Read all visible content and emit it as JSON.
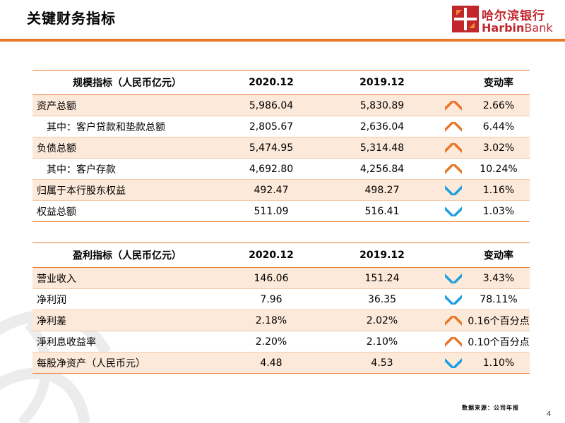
{
  "header": {
    "title": "关键财务指标",
    "logo_cn": "哈尔滨银行",
    "logo_en_bold": "Harbin",
    "logo_en_regular": "Bank"
  },
  "colors": {
    "accent": "#e9772a",
    "row_shade": "#fde9d9",
    "arrow_up": "#e9772a",
    "arrow_down": "#1aa0e0",
    "logo_red": "#c1272d"
  },
  "scale_table": {
    "headers": [
      "规模指标（人民币亿元）",
      "2020.12",
      "2019.12",
      "",
      "变动率"
    ],
    "rows": [
      {
        "name": "资产总额",
        "v2020": "5,986.04",
        "v2019": "5,830.89",
        "trend": "up",
        "rate": "2.66%",
        "indent": false
      },
      {
        "name": "其中：客户贷款和垫款总额",
        "v2020": "2,805.67",
        "v2019": "2,636.04",
        "trend": "up",
        "rate": "6.44%",
        "indent": true
      },
      {
        "name": "负债总额",
        "v2020": "5,474.95",
        "v2019": "5,314.48",
        "trend": "up",
        "rate": "3.02%",
        "indent": false
      },
      {
        "name": "其中：客户存款",
        "v2020": "4,692.80",
        "v2019": "4,256.84",
        "trend": "up",
        "rate": "10.24%",
        "indent": true
      },
      {
        "name": "归属于本行股东权益",
        "v2020": "492.47",
        "v2019": "498.27",
        "trend": "down",
        "rate": "1.16%",
        "indent": false
      },
      {
        "name": "权益总额",
        "v2020": "511.09",
        "v2019": "516.41",
        "trend": "down",
        "rate": "1.03%",
        "indent": false
      }
    ]
  },
  "profit_table": {
    "headers": [
      "盈利指标（人民币亿元）",
      "2020.12",
      "2019.12",
      "",
      "变动率"
    ],
    "rows": [
      {
        "name": "营业收入",
        "v2020": "146.06",
        "v2019": "151.24",
        "trend": "down",
        "rate": "3.43%",
        "indent": false
      },
      {
        "name": "净利润",
        "v2020": "7.96",
        "v2019": "36.35",
        "trend": "down",
        "rate": "78.11%",
        "indent": false
      },
      {
        "name": "净利差",
        "v2020": "2.18%",
        "v2019": "2.02%",
        "trend": "up",
        "rate": "0.16个百分点",
        "indent": false
      },
      {
        "name": "淨利息收益率",
        "v2020": "2.20%",
        "v2019": "2.10%",
        "trend": "up",
        "rate": "0.10个百分点",
        "indent": false
      },
      {
        "name": "每股净资产（人民币元）",
        "v2020": "4.48",
        "v2019": "4.53",
        "trend": "down",
        "rate": "1.10%",
        "indent": false
      }
    ]
  },
  "footer": {
    "source": "数据来源：公司年报",
    "page_number": "4"
  }
}
